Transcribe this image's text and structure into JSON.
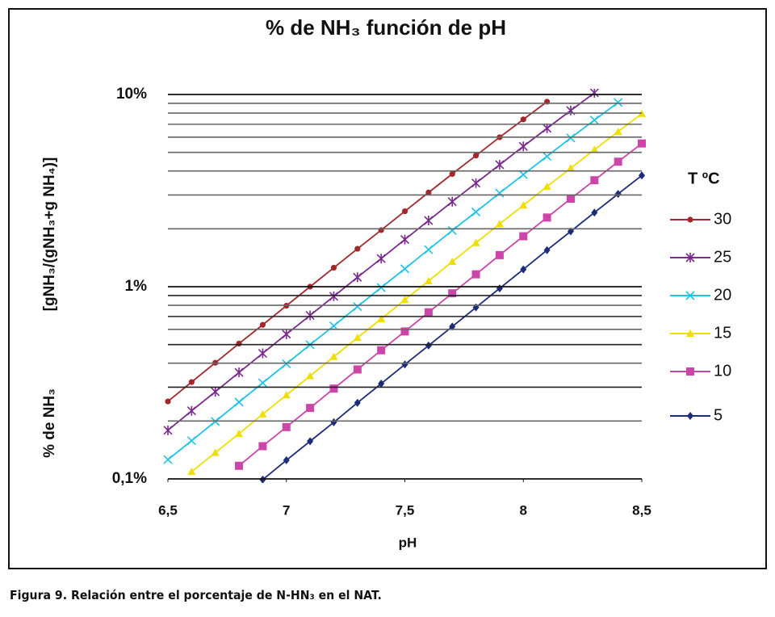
{
  "chart_data": {
    "type": "line",
    "title": "% de NH₃ función de pH",
    "xlabel": "pH",
    "ylabel": [
      "% de NH₃",
      "[gNH₃/(gNH₃+g NH₄)]"
    ],
    "caption": "Figura 9. Relación entre el porcentaje de N-HN₃ en el NAT.",
    "legend_title": "T ºC",
    "legend": "right",
    "log_y": true,
    "grid": true,
    "x": [
      6.5,
      6.6,
      6.7,
      6.8,
      6.9,
      7.0,
      7.1,
      7.2,
      7.3,
      7.4,
      7.5,
      7.6,
      7.7,
      7.8,
      7.9,
      8.0,
      8.1,
      8.2,
      8.3,
      8.4,
      8.5
    ],
    "xlim": [
      6.5,
      8.5
    ],
    "xticks": [
      {
        "value": 6.5,
        "label": "6,5"
      },
      7,
      {
        "value": 7.5,
        "label": "7,5"
      },
      8,
      {
        "value": 8.5,
        "label": "8,5"
      }
    ],
    "ylim": [
      0.1,
      10
    ],
    "yticks": [
      {
        "value": 0.1,
        "label": "0,1%"
      },
      {
        "value": 1,
        "label": "1%"
      },
      {
        "value": 10,
        "label": "10%"
      }
    ],
    "yminorticks": [
      0.2,
      0.3,
      0.4,
      0.5,
      0.6,
      0.7,
      0.8,
      0.9,
      2,
      3,
      4,
      5,
      6,
      7,
      8,
      9
    ],
    "series": [
      {
        "name": "30",
        "color": "#a3282c",
        "marker": "circle",
        "values": [
          0.253,
          0.319,
          0.402,
          0.506,
          0.633,
          0.796,
          1.0,
          1.255,
          1.575,
          1.97,
          2.47,
          3.09,
          3.86,
          4.81,
          5.99,
          7.42,
          9.17,
          null,
          null,
          null,
          null
        ]
      },
      {
        "name": "25",
        "color": "#7a2a8c",
        "marker": "star",
        "values": [
          0.179,
          0.226,
          0.284,
          0.358,
          0.45,
          0.566,
          0.709,
          0.891,
          1.12,
          1.4,
          1.76,
          2.21,
          2.77,
          3.46,
          4.31,
          5.37,
          6.67,
          8.25,
          10.2,
          null,
          null
        ]
      },
      {
        "name": "20",
        "color": "#1ec3e6",
        "marker": "x",
        "values": [
          0.126,
          0.158,
          0.199,
          0.251,
          0.316,
          0.397,
          0.499,
          0.625,
          0.788,
          0.99,
          1.24,
          1.56,
          1.96,
          2.45,
          3.07,
          3.83,
          4.77,
          5.94,
          7.36,
          9.09,
          null
        ]
      },
      {
        "name": "15",
        "color": "#efdf00",
        "marker": "triangle",
        "values": [
          null,
          0.109,
          0.137,
          0.172,
          0.217,
          0.273,
          0.343,
          0.432,
          0.543,
          0.68,
          0.855,
          1.07,
          1.35,
          1.69,
          2.12,
          2.65,
          3.32,
          4.14,
          5.16,
          6.41,
          7.94
        ]
      },
      {
        "name": "10",
        "color": "#cc45a8",
        "marker": "square",
        "values": [
          null,
          null,
          null,
          0.117,
          0.148,
          0.186,
          0.234,
          0.295,
          0.371,
          0.467,
          0.585,
          0.736,
          0.924,
          1.16,
          1.46,
          1.83,
          2.29,
          2.87,
          3.58,
          4.47,
          5.56
        ]
      },
      {
        "name": "5",
        "color": "#1d2c78",
        "marker": "diamond",
        "values": [
          null,
          null,
          null,
          null,
          0.0991,
          0.125,
          0.157,
          0.197,
          0.249,
          0.313,
          0.394,
          0.494,
          0.62,
          0.78,
          0.98,
          1.23,
          1.55,
          1.94,
          2.43,
          3.04,
          3.79
        ]
      }
    ]
  }
}
